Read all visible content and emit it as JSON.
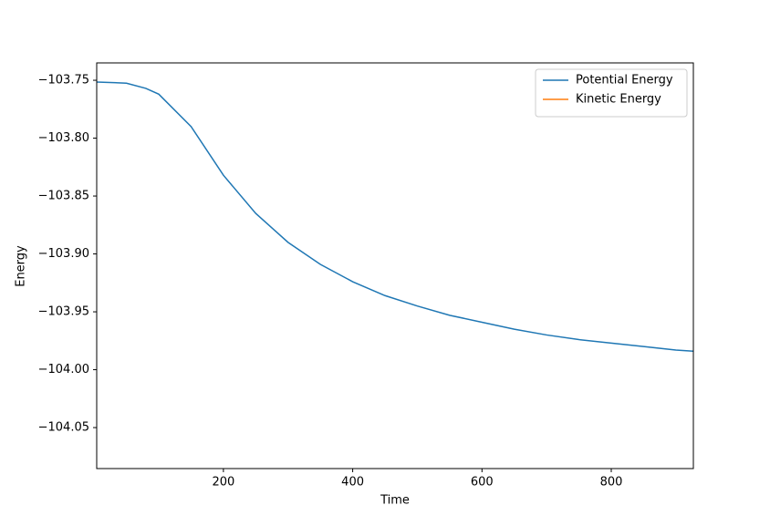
{
  "chart_data": {
    "type": "line",
    "xlabel": "Time",
    "ylabel": "Energy",
    "x": [
      4,
      50,
      80,
      100,
      150,
      200,
      250,
      300,
      350,
      400,
      450,
      500,
      550,
      600,
      650,
      700,
      750,
      800,
      850,
      900,
      927
    ],
    "series": [
      {
        "name": "Potential Energy",
        "color": "#1f77b4",
        "values": [
          -103.7515,
          -103.7525,
          -103.757,
          -103.762,
          -103.79,
          -103.832,
          -103.865,
          -103.89,
          -103.909,
          -103.924,
          -103.936,
          -103.945,
          -103.953,
          -103.959,
          -103.965,
          -103.97,
          -103.974,
          -103.977,
          -103.98,
          -103.983,
          -103.984
        ]
      },
      {
        "name": "Kinetic Energy",
        "color": "#ff7f0e",
        "values": [
          null,
          null,
          null,
          null,
          null,
          null,
          null,
          null,
          null,
          null,
          null,
          null,
          null,
          null,
          null,
          null,
          null,
          null,
          null,
          null,
          null
        ]
      }
    ],
    "xlim": [
      4,
      927
    ],
    "ylim": [
      -104.0854,
      -103.735
    ],
    "xticks": [
      200,
      400,
      600,
      800
    ],
    "yticks": [
      {
        "value": -103.75,
        "label": "−103.75"
      },
      {
        "value": -103.8,
        "label": "−103.80"
      },
      {
        "value": -103.85,
        "label": "−103.85"
      },
      {
        "value": -103.9,
        "label": "−103.90"
      },
      {
        "value": -103.95,
        "label": "−103.95"
      },
      {
        "value": -104,
        "label": "−104.00"
      },
      {
        "value": -104.05,
        "label": "−104.05"
      }
    ],
    "legend": "upper right"
  }
}
